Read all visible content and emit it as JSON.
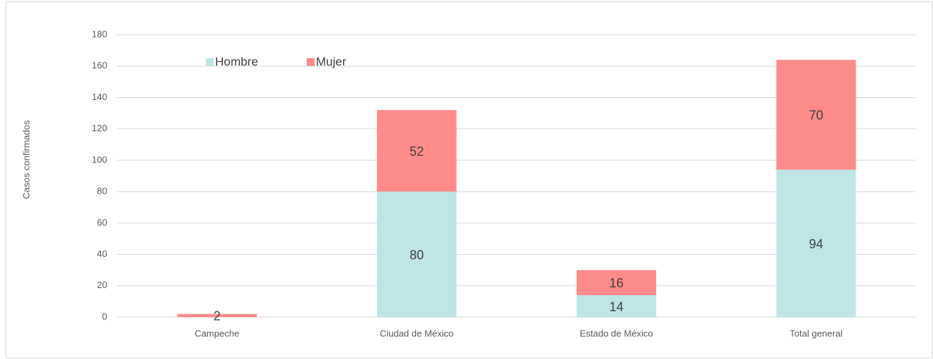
{
  "chart_data": {
    "type": "stacked_bar",
    "y_label": "Casos confirmados",
    "categories": [
      "Campeche",
      "Ciudad de México",
      "Estado de México",
      "Total general"
    ],
    "series": [
      {
        "name": "Hombre",
        "color": "#bee4e6",
        "values": [
          0,
          80,
          14,
          94
        ]
      },
      {
        "name": "Mujer",
        "color": "#ff8b8a",
        "values": [
          2,
          52,
          16,
          70
        ]
      }
    ],
    "ylim": [
      0,
      180
    ],
    "yticks": [
      0,
      20,
      40,
      60,
      80,
      100,
      120,
      140,
      160,
      180
    ],
    "grid": true
  }
}
